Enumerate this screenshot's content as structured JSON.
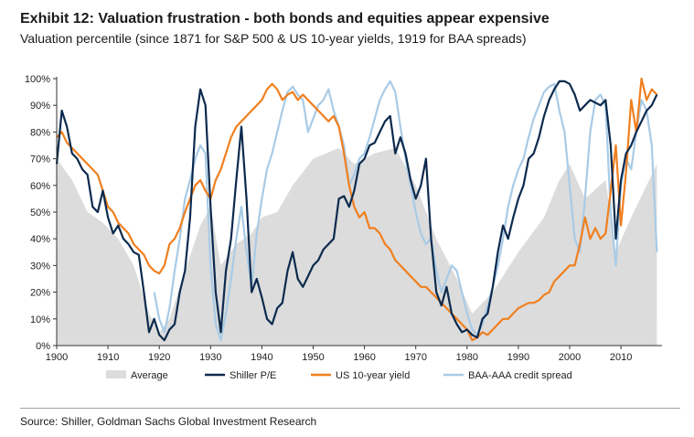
{
  "header": {
    "title": "Exhibit 12: Valuation frustration - both bonds and equities appear expensive",
    "subtitle": "Valuation percentile (since 1871 for S&P 500 & US 10-year yields, 1919 for BAA spreads)"
  },
  "footer": {
    "source": "Source: Shiller, Goldman Sachs Global Investment Research"
  },
  "colors": {
    "average": "#dcdcdc",
    "shiller": "#0c2a4d",
    "yield": "#f07f1f",
    "spread": "#a9cbe6",
    "axis": "#333333"
  },
  "chart_data": {
    "type": "line",
    "title": "Exhibit 12: Valuation frustration - both bonds and equities appear expensive",
    "subtitle": "Valuation percentile (since 1871 for S&P 500 & US 10-year yields, 1919 for BAA spreads)",
    "xlabel": "",
    "ylabel": "",
    "xlim": [
      1900,
      2018
    ],
    "ylim": [
      0,
      100
    ],
    "x_ticks": [
      1900,
      1910,
      1920,
      1930,
      1940,
      1950,
      1960,
      1970,
      1980,
      1990,
      2000,
      2010
    ],
    "y_ticks": [
      "0%",
      "10%",
      "20%",
      "30%",
      "40%",
      "50%",
      "60%",
      "70%",
      "80%",
      "90%",
      "100%"
    ],
    "legend_position": "bottom",
    "series": [
      {
        "name": "Average",
        "style": "area",
        "x": [
          1900,
          1903,
          1906,
          1909,
          1912,
          1915,
          1918,
          1920,
          1922,
          1925,
          1928,
          1930,
          1932,
          1935,
          1938,
          1940,
          1943,
          1946,
          1950,
          1955,
          1958,
          1962,
          1966,
          1970,
          1974,
          1978,
          1981,
          1985,
          1990,
          1995,
          1998,
          2000,
          2003,
          2007,
          2009,
          2012,
          2015,
          2017
        ],
        "values": [
          70,
          62,
          50,
          46,
          40,
          30,
          12,
          5,
          10,
          28,
          45,
          52,
          30,
          38,
          42,
          48,
          50,
          60,
          70,
          74,
          68,
          72,
          74,
          60,
          40,
          25,
          12,
          20,
          35,
          48,
          62,
          68,
          55,
          62,
          35,
          48,
          60,
          68
        ]
      },
      {
        "name": "Shiller P/E",
        "style": "line",
        "x": [
          1900,
          1901,
          1902,
          1903,
          1904,
          1905,
          1906,
          1907,
          1908,
          1909,
          1910,
          1911,
          1912,
          1913,
          1914,
          1915,
          1916,
          1917,
          1918,
          1919,
          1920,
          1921,
          1922,
          1923,
          1924,
          1925,
          1926,
          1927,
          1928,
          1929,
          1930,
          1931,
          1932,
          1933,
          1934,
          1935,
          1936,
          1937,
          1938,
          1939,
          1940,
          1941,
          1942,
          1943,
          1944,
          1945,
          1946,
          1947,
          1948,
          1949,
          1950,
          1951,
          1952,
          1953,
          1954,
          1955,
          1956,
          1957,
          1958,
          1959,
          1960,
          1961,
          1962,
          1963,
          1964,
          1965,
          1966,
          1967,
          1968,
          1969,
          1970,
          1971,
          1972,
          1973,
          1974,
          1975,
          1976,
          1977,
          1978,
          1979,
          1980,
          1981,
          1982,
          1983,
          1984,
          1985,
          1986,
          1987,
          1988,
          1989,
          1990,
          1991,
          1992,
          1993,
          1994,
          1995,
          1996,
          1997,
          1998,
          1999,
          2000,
          2001,
          2002,
          2003,
          2004,
          2005,
          2006,
          2007,
          2008,
          2009,
          2010,
          2011,
          2012,
          2013,
          2014,
          2015,
          2016,
          2017
        ],
        "values": [
          68,
          88,
          82,
          72,
          70,
          66,
          64,
          52,
          50,
          58,
          48,
          42,
          45,
          40,
          38,
          35,
          34,
          20,
          5,
          10,
          4,
          2,
          6,
          8,
          20,
          28,
          48,
          82,
          96,
          90,
          52,
          20,
          5,
          28,
          40,
          62,
          82,
          55,
          20,
          25,
          18,
          10,
          8,
          14,
          16,
          28,
          35,
          25,
          22,
          26,
          30,
          32,
          36,
          38,
          40,
          55,
          56,
          52,
          58,
          68,
          70,
          75,
          76,
          80,
          84,
          86,
          72,
          78,
          72,
          62,
          55,
          60,
          70,
          40,
          20,
          15,
          22,
          12,
          8,
          5,
          6,
          4,
          3,
          10,
          12,
          22,
          35,
          45,
          40,
          48,
          55,
          60,
          70,
          72,
          78,
          86,
          92,
          96,
          99,
          99,
          98,
          94,
          88,
          90,
          92,
          91,
          90,
          92,
          75,
          40,
          62,
          72,
          75,
          80,
          84,
          88,
          90,
          94
        ]
      },
      {
        "name": "US 10-year yield",
        "style": "line",
        "x": [
          1900,
          1901,
          1902,
          1903,
          1904,
          1905,
          1906,
          1907,
          1908,
          1909,
          1910,
          1911,
          1912,
          1913,
          1914,
          1915,
          1916,
          1917,
          1918,
          1919,
          1920,
          1921,
          1922,
          1923,
          1924,
          1925,
          1926,
          1927,
          1928,
          1929,
          1930,
          1931,
          1932,
          1933,
          1934,
          1935,
          1936,
          1937,
          1938,
          1939,
          1940,
          1941,
          1942,
          1943,
          1944,
          1945,
          1946,
          1947,
          1948,
          1949,
          1950,
          1951,
          1952,
          1953,
          1954,
          1955,
          1956,
          1957,
          1958,
          1959,
          1960,
          1961,
          1962,
          1963,
          1964,
          1965,
          1966,
          1967,
          1968,
          1969,
          1970,
          1971,
          1972,
          1973,
          1974,
          1975,
          1976,
          1977,
          1978,
          1979,
          1980,
          1981,
          1982,
          1983,
          1984,
          1985,
          1986,
          1987,
          1988,
          1989,
          1990,
          1991,
          1992,
          1993,
          1994,
          1995,
          1996,
          1997,
          1998,
          1999,
          2000,
          2001,
          2002,
          2003,
          2004,
          2005,
          2006,
          2007,
          2008,
          2009,
          2010,
          2011,
          2012,
          2013,
          2014,
          2015,
          2016,
          2017
        ],
        "values": [
          78,
          80,
          76,
          74,
          72,
          70,
          68,
          66,
          64,
          58,
          52,
          50,
          46,
          44,
          42,
          38,
          36,
          34,
          30,
          28,
          27,
          30,
          38,
          40,
          44,
          50,
          55,
          60,
          62,
          58,
          55,
          62,
          66,
          72,
          78,
          82,
          84,
          86,
          88,
          90,
          92,
          96,
          98,
          96,
          92,
          94,
          95,
          92,
          94,
          92,
          90,
          88,
          86,
          84,
          86,
          82,
          72,
          60,
          52,
          48,
          50,
          44,
          44,
          42,
          38,
          36,
          32,
          30,
          28,
          26,
          24,
          22,
          22,
          20,
          18,
          16,
          14,
          12,
          10,
          8,
          6,
          2,
          3,
          5,
          4,
          6,
          8,
          10,
          10,
          12,
          14,
          15,
          16,
          16,
          17,
          19,
          20,
          24,
          26,
          28,
          30,
          30,
          38,
          48,
          40,
          44,
          40,
          42,
          58,
          75,
          45,
          65,
          92,
          80,
          100,
          92,
          96,
          94
        ]
      },
      {
        "name": "BAA-AAA credit spread",
        "style": "line",
        "x": [
          1919,
          1920,
          1921,
          1922,
          1923,
          1924,
          1925,
          1926,
          1927,
          1928,
          1929,
          1930,
          1931,
          1932,
          1933,
          1934,
          1935,
          1936,
          1937,
          1938,
          1939,
          1940,
          1941,
          1942,
          1943,
          1944,
          1945,
          1946,
          1947,
          1948,
          1949,
          1950,
          1951,
          1952,
          1953,
          1954,
          1955,
          1956,
          1957,
          1958,
          1959,
          1960,
          1961,
          1962,
          1963,
          1964,
          1965,
          1966,
          1967,
          1968,
          1969,
          1970,
          1971,
          1972,
          1973,
          1974,
          1975,
          1976,
          1977,
          1978,
          1979,
          1980,
          1981,
          1982,
          1983,
          1984,
          1985,
          1986,
          1987,
          1988,
          1989,
          1990,
          1991,
          1992,
          1993,
          1994,
          1995,
          1996,
          1997,
          1998,
          1999,
          2000,
          2001,
          2002,
          2003,
          2004,
          2005,
          2006,
          2007,
          2008,
          2009,
          2010,
          2011,
          2012,
          2013,
          2014,
          2015,
          2016,
          2017
        ],
        "values": [
          20,
          10,
          5,
          14,
          28,
          40,
          55,
          62,
          70,
          75,
          72,
          30,
          8,
          2,
          12,
          25,
          40,
          52,
          35,
          22,
          42,
          55,
          66,
          72,
          80,
          88,
          95,
          97,
          94,
          92,
          80,
          85,
          90,
          92,
          96,
          88,
          82,
          75,
          60,
          64,
          70,
          72,
          78,
          85,
          92,
          96,
          99,
          95,
          82,
          70,
          60,
          50,
          42,
          38,
          40,
          28,
          20,
          25,
          30,
          28,
          20,
          12,
          6,
          4,
          8,
          15,
          22,
          30,
          40,
          52,
          60,
          66,
          70,
          78,
          85,
          90,
          95,
          97,
          98,
          88,
          80,
          60,
          40,
          35,
          55,
          80,
          92,
          94,
          90,
          50,
          30,
          60,
          70,
          66,
          80,
          92,
          88,
          75,
          35
        ]
      }
    ]
  }
}
